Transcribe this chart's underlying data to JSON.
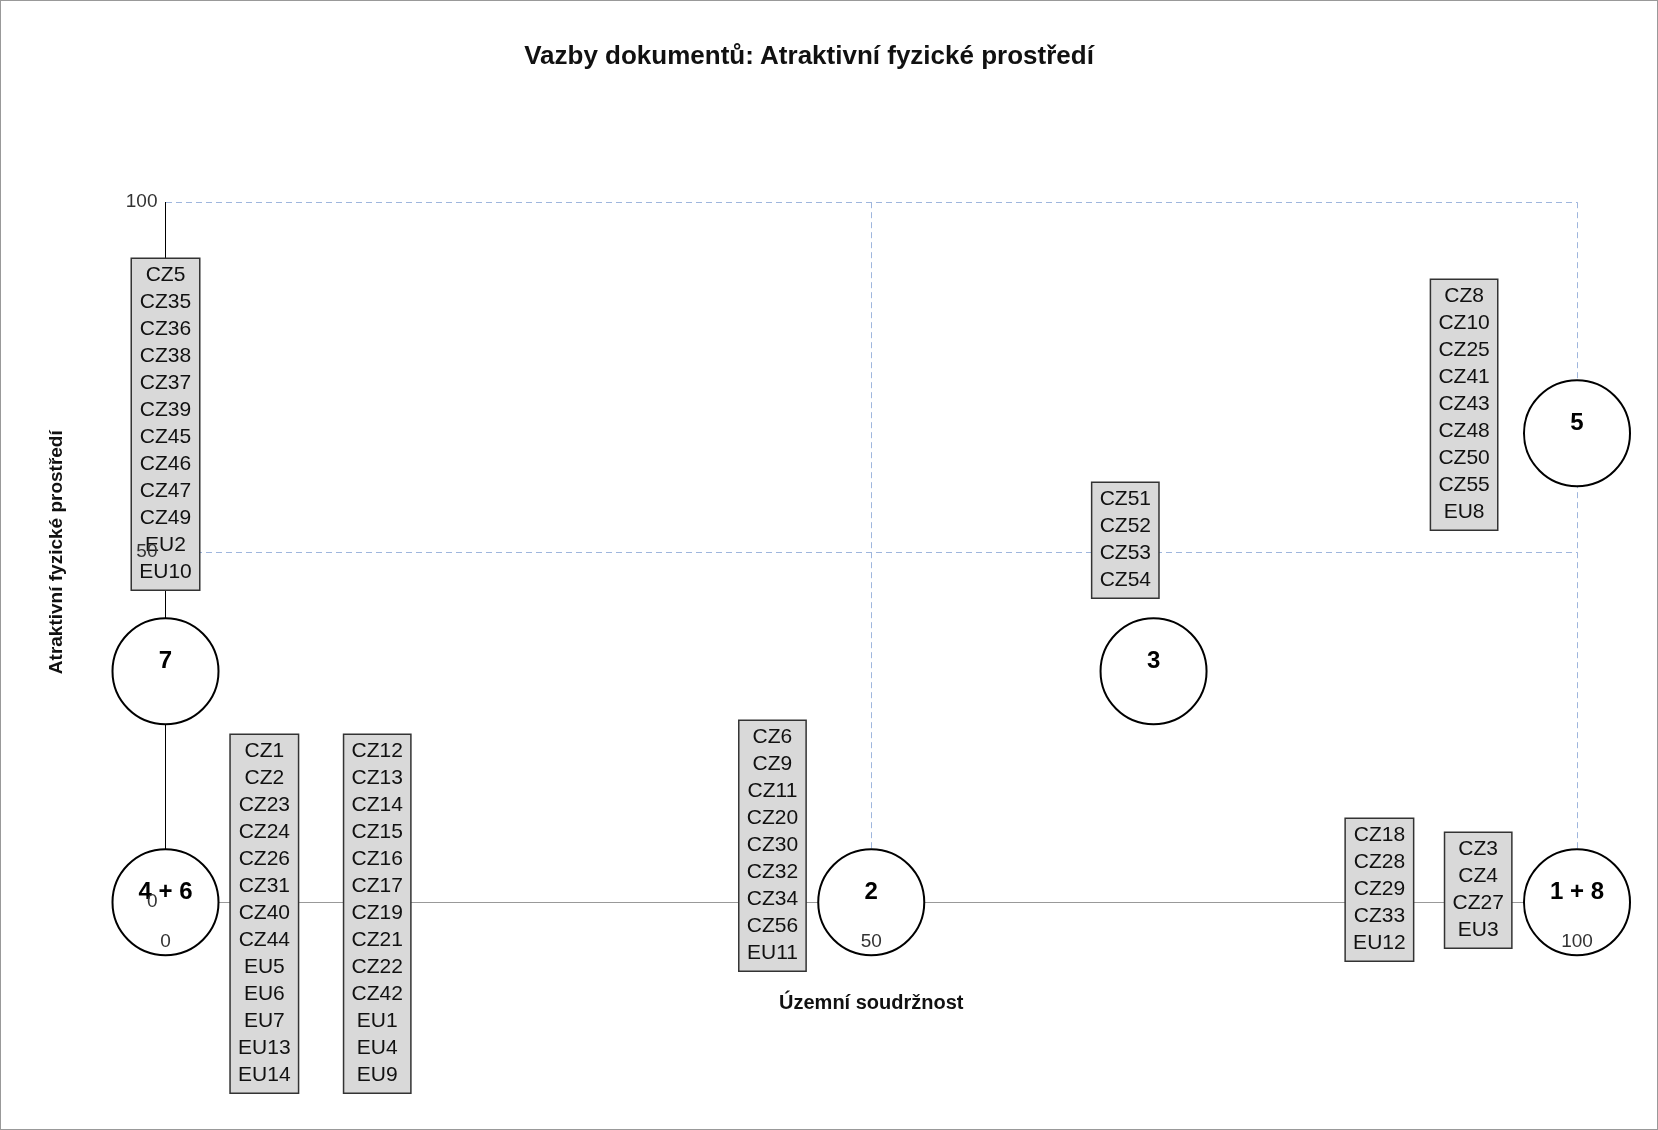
{
  "chart_data": {
    "type": "bubble",
    "title": "Vazby dokumentů: Atraktivní fyzické prostředí",
    "xlabel": "Územní soudržnost",
    "ylabel": "Atraktivní fyzické prostředí",
    "series": [
      {
        "name": "7",
        "x": [
          0
        ],
        "values": [
          33
        ],
        "sizes": [
          1
        ],
        "color": "#000000"
      },
      {
        "name": "4 + 6",
        "x": [
          0
        ],
        "values": [
          0
        ],
        "sizes": [
          1
        ],
        "color": "#000000"
      },
      {
        "name": "2",
        "x": [
          50
        ],
        "values": [
          0
        ],
        "sizes": [
          1
        ],
        "color": "#000000"
      },
      {
        "name": "3",
        "x": [
          70
        ],
        "values": [
          33
        ],
        "sizes": [
          1
        ],
        "color": "#000000"
      },
      {
        "name": "5",
        "x": [
          100
        ],
        "values": [
          67
        ],
        "sizes": [
          1
        ],
        "color": "#000000"
      },
      {
        "name": "1 + 8",
        "x": [
          100
        ],
        "values": [
          0
        ],
        "sizes": [
          1
        ],
        "color": "#000000"
      }
    ],
    "xlim": [
      0,
      100
    ],
    "ylim": [
      0,
      100
    ],
    "xticks": [
      0,
      50,
      100
    ],
    "yticks": [
      0,
      50,
      100
    ],
    "grid": true,
    "annotations": [
      "CZ5\nCZ35\nCZ36\nCZ38\nCZ37\nCZ39\nCZ45\nCZ46\nCZ47\nCZ49\nEU2\nEU10",
      "CZ1\nCZ2\nCZ23\nCZ24\nCZ26\nCZ31\nCZ40\nCZ44\nEU5\nEU6\nEU7\nEU13\nEU14",
      "CZ12\nCZ13\nCZ14\nCZ15\nCZ16\nCZ17\nCZ19\nCZ21\nCZ22\nCZ42\nEU1\nEU4\nEU9",
      "CZ6\nCZ9\nCZ11\nCZ20\nCZ30\nCZ32\nCZ34\nCZ56\nEU11",
      "CZ51\nCZ52\nCZ53\nCZ54",
      "CZ8\nCZ10\nCZ25\nCZ41\nCZ43\nCZ48\nCZ50\nCZ55\nEU8",
      "CZ18\nCZ28\nCZ29\nCZ33\nEU12",
      "CZ3\nCZ4\nCZ27\nEU3"
    ]
  }
}
